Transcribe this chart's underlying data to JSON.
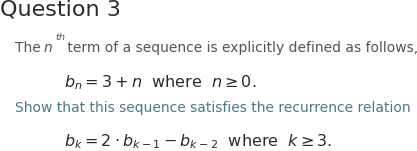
{
  "title": "Question 3",
  "title_fontsize": 16,
  "title_color": "#2b2b2b",
  "bg_color": "#ffffff",
  "line1_color": "#555555",
  "line1_fontsize": 10,
  "line2_color": "#4a7a8a",
  "line2_fontsize": 10,
  "formula_color": "#2b2b2b",
  "formula_fontsize": 11.5
}
